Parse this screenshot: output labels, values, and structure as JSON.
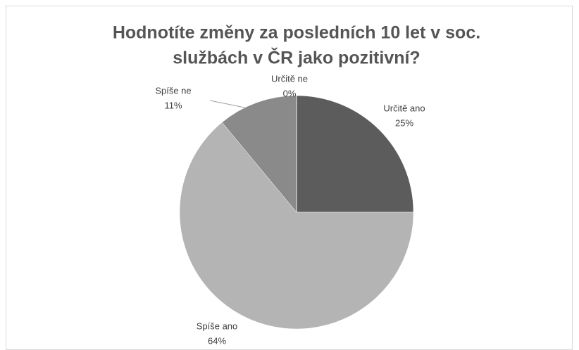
{
  "chart_data": {
    "type": "pie",
    "title": [
      "Hodnotíte změny za posledních 10 let v soc.",
      "službách v ČR jako pozitivní?"
    ],
    "categories": [
      "Určitě ano",
      "Spíše ano",
      "Spíše ne",
      "Určitě ne"
    ],
    "values": [
      25,
      64,
      11,
      0
    ],
    "value_labels": [
      "25%",
      "64%",
      "11%",
      "0%"
    ],
    "colors": [
      "#5c5c5c",
      "#b4b4b4",
      "#8a8a8a",
      "#3a3a3a"
    ]
  }
}
